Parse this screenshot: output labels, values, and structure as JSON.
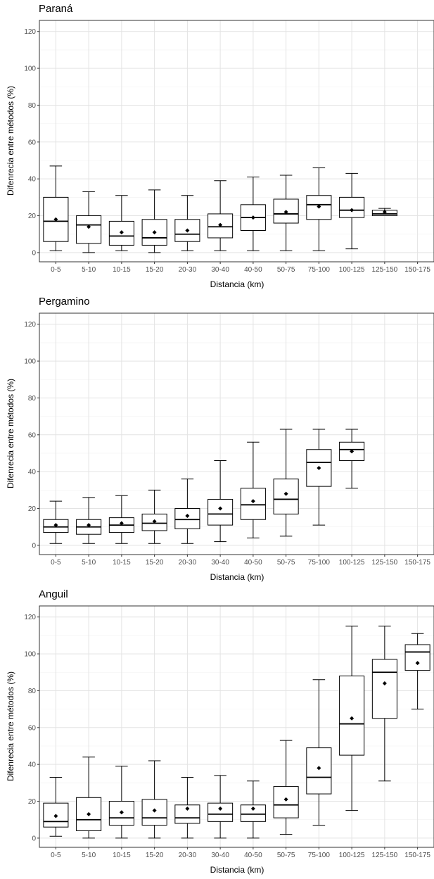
{
  "chart_data": [
    {
      "type": "box",
      "title": "Paraná",
      "xlabel": "Distancia (km)",
      "ylabel": "Difenrecia entre métodos (%)",
      "ylim": [
        -5,
        126
      ],
      "yticks": [
        0,
        20,
        40,
        60,
        80,
        100,
        120
      ],
      "grid": true,
      "categories": [
        "0-5",
        "5-10",
        "10-15",
        "15-20",
        "20-30",
        "30-40",
        "40-50",
        "50-75",
        "75-100",
        "100-125",
        "125-150",
        "150-175"
      ],
      "boxes": [
        {
          "min": 1,
          "q1": 6,
          "median": 17,
          "q3": 30,
          "max": 47,
          "mean": 18
        },
        {
          "min": 0,
          "q1": 5,
          "median": 15,
          "q3": 20,
          "max": 33,
          "mean": 14
        },
        {
          "min": 1,
          "q1": 4,
          "median": 9,
          "q3": 17,
          "max": 31,
          "mean": 11
        },
        {
          "min": 0,
          "q1": 4,
          "median": 8,
          "q3": 18,
          "max": 34,
          "mean": 11
        },
        {
          "min": 1,
          "q1": 6,
          "median": 10,
          "q3": 18,
          "max": 31,
          "mean": 12
        },
        {
          "min": 1,
          "q1": 8,
          "median": 14,
          "q3": 21,
          "max": 39,
          "mean": 15
        },
        {
          "min": 1,
          "q1": 12,
          "median": 19,
          "q3": 26,
          "max": 41,
          "mean": 19
        },
        {
          "min": 1,
          "q1": 16,
          "median": 21,
          "q3": 29,
          "max": 42,
          "mean": 22
        },
        {
          "min": 1,
          "q1": 18,
          "median": 26,
          "q3": 31,
          "max": 46,
          "mean": 25
        },
        {
          "min": 2,
          "q1": 19,
          "median": 23,
          "q3": 30,
          "max": 43,
          "mean": 23
        },
        {
          "min": 20,
          "q1": 20,
          "median": 21,
          "q3": 23,
          "max": 24,
          "mean": 22
        },
        null
      ]
    },
    {
      "type": "box",
      "title": "Pergamino",
      "xlabel": "Distancia (km)",
      "ylabel": "Difenrecia entre métodos (%)",
      "ylim": [
        -5,
        126
      ],
      "yticks": [
        0,
        20,
        40,
        60,
        80,
        100,
        120
      ],
      "grid": true,
      "categories": [
        "0-5",
        "5-10",
        "10-15",
        "15-20",
        "20-30",
        "30-40",
        "40-50",
        "50-75",
        "75-100",
        "100-125",
        "125-150",
        "150-175"
      ],
      "boxes": [
        {
          "min": 1,
          "q1": 7,
          "median": 10,
          "q3": 14,
          "max": 24,
          "mean": 11
        },
        {
          "min": 1,
          "q1": 6,
          "median": 10,
          "q3": 14,
          "max": 26,
          "mean": 11
        },
        {
          "min": 1,
          "q1": 7,
          "median": 11,
          "q3": 15,
          "max": 27,
          "mean": 12
        },
        {
          "min": 1,
          "q1": 8,
          "median": 12,
          "q3": 17,
          "max": 30,
          "mean": 13
        },
        {
          "min": 1,
          "q1": 9,
          "median": 14,
          "q3": 20,
          "max": 36,
          "mean": 16
        },
        {
          "min": 2,
          "q1": 11,
          "median": 17,
          "q3": 25,
          "max": 46,
          "mean": 20
        },
        {
          "min": 4,
          "q1": 14,
          "median": 22,
          "q3": 31,
          "max": 56,
          "mean": 24
        },
        {
          "min": 5,
          "q1": 17,
          "median": 25,
          "q3": 36,
          "max": 63,
          "mean": 28
        },
        {
          "min": 11,
          "q1": 32,
          "median": 45,
          "q3": 52,
          "max": 63,
          "mean": 42
        },
        {
          "min": 31,
          "q1": 46,
          "median": 52,
          "q3": 56,
          "max": 63,
          "mean": 51
        },
        null,
        null
      ]
    },
    {
      "type": "box",
      "title": "Anguil",
      "xlabel": "Distancia (km)",
      "ylabel": "Difenrecia entre métodos (%)",
      "ylim": [
        -5,
        126
      ],
      "yticks": [
        0,
        20,
        40,
        60,
        80,
        100,
        120
      ],
      "grid": true,
      "categories": [
        "0-5",
        "5-10",
        "10-15",
        "15-20",
        "20-30",
        "30-40",
        "40-50",
        "50-75",
        "75-100",
        "100-125",
        "125-150",
        "150-175"
      ],
      "boxes": [
        {
          "min": 1,
          "q1": 6,
          "median": 9,
          "q3": 19,
          "max": 33,
          "mean": 12
        },
        {
          "min": 0,
          "q1": 4,
          "median": 10,
          "q3": 22,
          "max": 44,
          "mean": 13
        },
        {
          "min": 0,
          "q1": 7,
          "median": 11,
          "q3": 20,
          "max": 39,
          "mean": 14
        },
        {
          "min": 0,
          "q1": 7,
          "median": 11,
          "q3": 21,
          "max": 42,
          "mean": 15
        },
        {
          "min": 0,
          "q1": 8,
          "median": 11,
          "q3": 18,
          "max": 33,
          "mean": 16
        },
        {
          "min": 0,
          "q1": 9,
          "median": 13,
          "q3": 19,
          "max": 34,
          "mean": 16
        },
        {
          "min": 0,
          "q1": 9,
          "median": 13,
          "q3": 18,
          "max": 31,
          "mean": 16
        },
        {
          "min": 2,
          "q1": 11,
          "median": 18,
          "q3": 28,
          "max": 53,
          "mean": 21
        },
        {
          "min": 7,
          "q1": 24,
          "median": 33,
          "q3": 49,
          "max": 86,
          "mean": 38
        },
        {
          "min": 15,
          "q1": 45,
          "median": 62,
          "q3": 88,
          "max": 115,
          "mean": 65
        },
        {
          "min": 31,
          "q1": 65,
          "median": 90,
          "q3": 97,
          "max": 115,
          "mean": 84
        },
        {
          "min": 70,
          "q1": 91,
          "median": 101,
          "q3": 105,
          "max": 111,
          "mean": 95
        }
      ]
    }
  ]
}
